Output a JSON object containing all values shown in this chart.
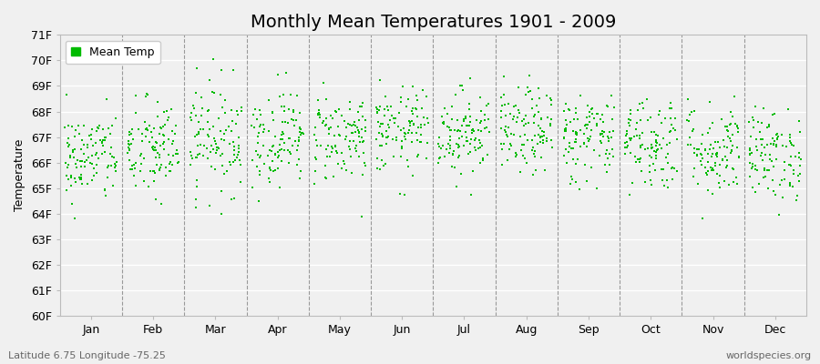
{
  "title": "Monthly Mean Temperatures 1901 - 2009",
  "ylabel": "Temperature",
  "subtitle": "Latitude 6.75 Longitude -75.25",
  "credit": "worldspecies.org",
  "ylim": [
    60.0,
    71.0
  ],
  "ytick_labels": [
    "60F",
    "61F",
    "62F",
    "63F",
    "64F",
    "65F",
    "66F",
    "67F",
    "68F",
    "69F",
    "70F",
    "71F"
  ],
  "months": [
    "Jan",
    "Feb",
    "Mar",
    "Apr",
    "May",
    "Jun",
    "Jul",
    "Aug",
    "Sep",
    "Oct",
    "Nov",
    "Dec"
  ],
  "monthly_means_F": [
    66.2,
    66.5,
    67.0,
    67.0,
    67.0,
    67.2,
    67.2,
    67.2,
    67.0,
    66.8,
    66.5,
    66.3
  ],
  "monthly_std_F": [
    0.9,
    1.0,
    1.1,
    0.95,
    0.9,
    0.85,
    0.85,
    0.85,
    0.9,
    0.95,
    0.95,
    0.9
  ],
  "n_years": 109,
  "start_year": 1901,
  "end_year": 2009,
  "dot_color": "#00BB00",
  "dot_size": 3,
  "background_color": "#F0F0F0",
  "plot_bg_color": "#F0F0F0",
  "legend_label": "Mean Temp",
  "legend_marker_color": "#00BB00",
  "title_fontsize": 14,
  "axis_fontsize": 9,
  "tick_fontsize": 9,
  "dashed_line_color": "#999999",
  "grid_color": "#FFFFFF"
}
